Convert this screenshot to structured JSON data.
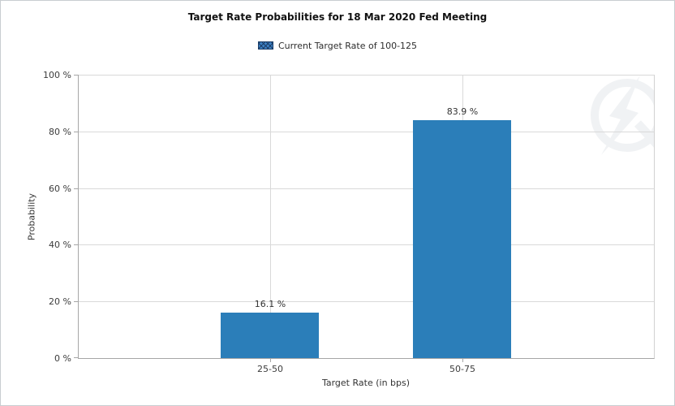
{
  "chart_data": {
    "type": "bar",
    "title": "Target Rate Probabilities for 18 Mar 2020 Fed Meeting",
    "legend": {
      "label": "Current Target Rate of 100-125",
      "position": "top",
      "swatch_fill": "#3c80c2",
      "swatch_hatch": "#1b3d68"
    },
    "categories": [
      "25-50",
      "50-75"
    ],
    "values": [
      16.1,
      83.9
    ],
    "value_labels": [
      "16.1 %",
      "83.9 %"
    ],
    "xlabel": "Target Rate (in bps)",
    "ylabel": "Probability",
    "ylim": [
      0,
      100
    ],
    "yticks": [
      0,
      20,
      40,
      60,
      80,
      100
    ],
    "ytick_labels": [
      "0 %",
      "20 %",
      "40 %",
      "60 %",
      "80 %",
      "100 %"
    ],
    "bar_color": "#2b7eb9",
    "grid": true,
    "gridline_color": "#d9d9d9",
    "watermark_icon": "quikstrike-logo"
  }
}
